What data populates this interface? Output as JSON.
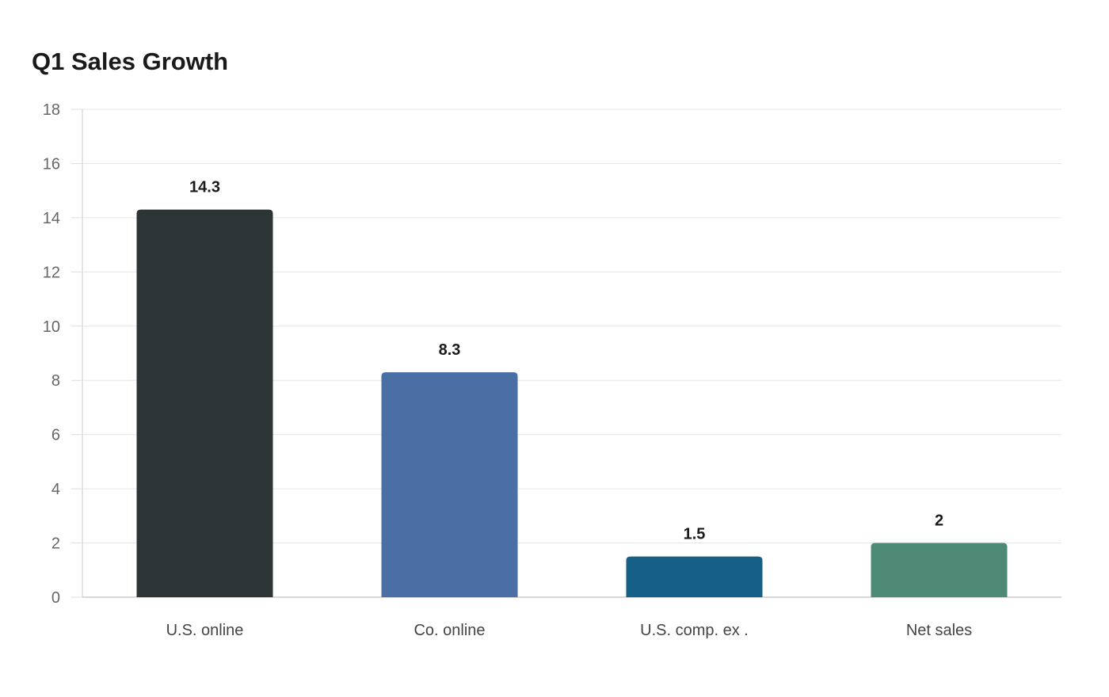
{
  "chart_data": {
    "type": "bar",
    "title": "Q1 Sales Growth",
    "xlabel": "",
    "ylabel": "",
    "categories": [
      "U.S. online",
      "Co. online",
      "U.S. comp. ex .",
      "Net sales"
    ],
    "values": [
      14.3,
      8.3,
      1.5,
      2
    ],
    "data_labels": [
      "14.3",
      "8.3",
      "1.5",
      "2"
    ],
    "colors": [
      "#2d3436",
      "#4a6fa5",
      "#166088",
      "#4f8a77"
    ],
    "ylim": [
      0,
      18
    ],
    "yticks": [
      0,
      2,
      4,
      6,
      8,
      10,
      12,
      14,
      16,
      18
    ],
    "grid": true,
    "legend": "none"
  }
}
